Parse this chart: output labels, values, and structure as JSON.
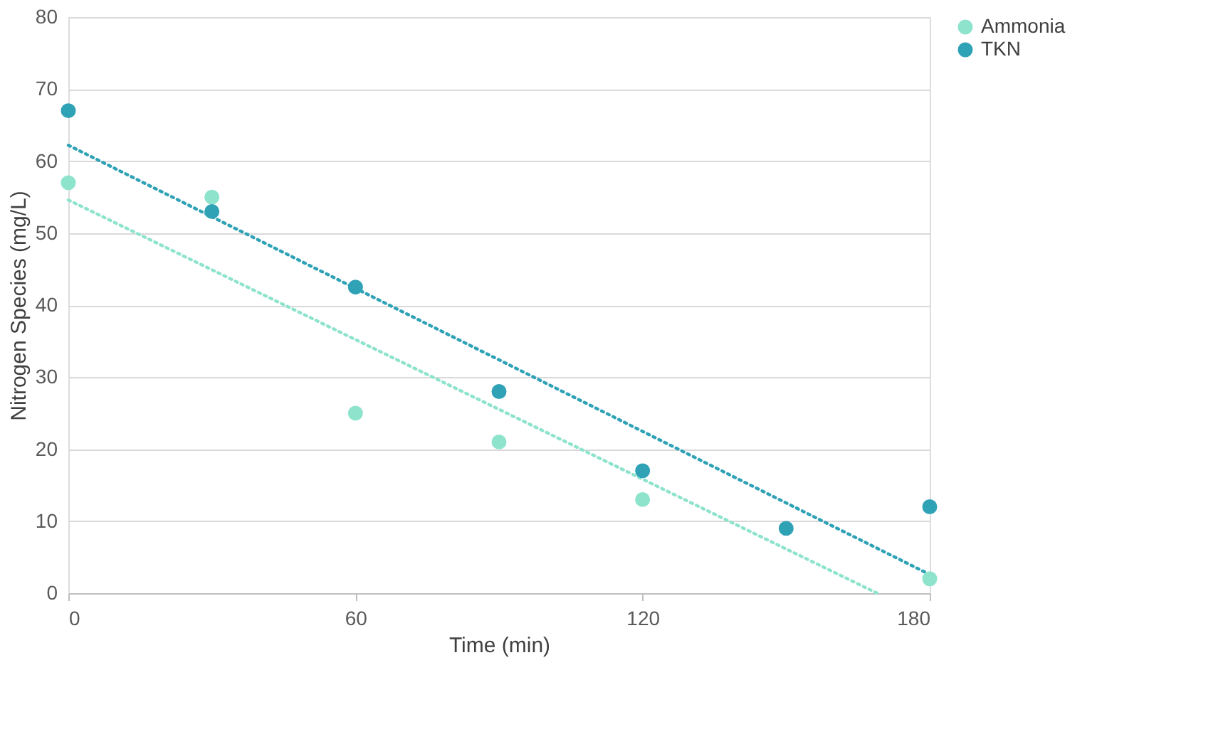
{
  "chart_data": {
    "type": "scatter",
    "xlabel": "Time (min)",
    "ylabel": "Nitrogen Species (mg/L)",
    "xlim": [
      0,
      180
    ],
    "xticks": [
      0,
      60,
      120,
      180
    ],
    "ylim": [
      0,
      80
    ],
    "yticks": [
      0,
      10,
      20,
      30,
      40,
      50,
      60,
      70,
      80
    ],
    "grid": "y",
    "legend": "right",
    "marker": "circle",
    "series": [
      {
        "name": "Ammonia",
        "color": "#8ee3cd",
        "x": [
          0,
          30,
          60,
          90,
          120,
          180
        ],
        "values": [
          57,
          55,
          25,
          21,
          13,
          2
        ]
      },
      {
        "name": "TKN",
        "color": "#2fa2b6",
        "x": [
          0,
          30,
          60,
          90,
          120,
          150,
          180
        ],
        "values": [
          67,
          53,
          42.5,
          28,
          17,
          9,
          12
        ]
      },
      {
        "type": "line",
        "line_style": "dotted",
        "marker": "none",
        "color": "#8ee3cd",
        "x": [
          0,
          169
        ],
        "values": [
          54.6,
          0
        ]
      },
      {
        "type": "line",
        "line_style": "dotted",
        "marker": "none",
        "color": "#2fa2b6",
        "x": [
          0,
          180
        ],
        "values": [
          62.2,
          2.6
        ]
      }
    ]
  }
}
